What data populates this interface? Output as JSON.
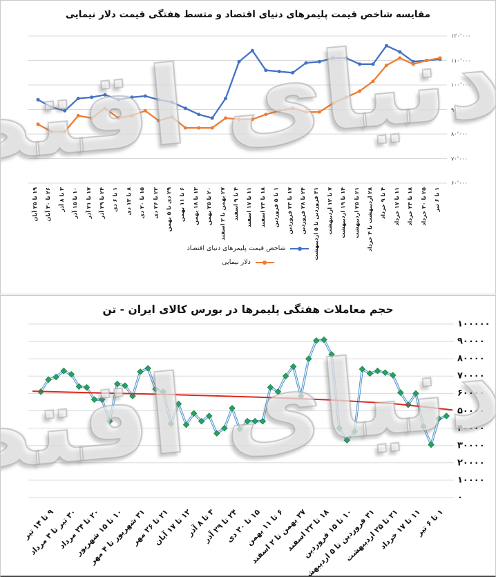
{
  "watermark": "دنیای اقتصاد",
  "chart_data": [
    {
      "type": "line",
      "title": "مقایسه شاخص قیمت پلیمرهای دنیای اقتصاد و متسط هفتگی قیمت دلار نیمایی",
      "categories": [
        "۱۹ تا ۲۵ آبان",
        "۲۶ تا ۳۰ آبان",
        "۳ تا ۸ آذر",
        "۱۰ تا ۱۵ آذر",
        "۱۷ تا ۲۱ آذر",
        "۲۴ تا ۲۹ آذر",
        "۱ تا ۶ دی",
        "۸ تا ۱۳ دی",
        "۱۵ تا ۲۰ دی",
        "۲۲ تا ۲۶ دی",
        "۲۹ دی تا ۵ بهمن",
        "۶ تا ۱۱ بهمن",
        "۱۳ تا ۱۸ بهمن",
        "۲۰ تا ۲۵ بهمن",
        "۲۷ بهمن تا ۲ اسفند",
        "۴ تا ۹ اسفند",
        "۱۱ تا ۱۷ اسفند",
        "۱۸ تا ۲۳ اسفند",
        "۱ تا ۵ فروردین",
        "۱۷ تا ۲۳ فروردین",
        "۲۴ تا ۲۸ فروردین",
        "۳۱ فروردین تا ۵ اردیبهشت",
        "۷ تا ۱۲ اردیبهشت",
        "۱۴ تا ۱۹ اردیبهشت",
        "۲۱ تا ۲۵ اردیبهشت",
        "۲۸ اردیبهشت تا ۴ خرداد",
        "۴ تا ۹ خرداد",
        "۱۱ تا ۱۷ خرداد",
        "۱۸ تا ۲۳ خرداد",
        "۲۵ تا ۳۰ خرداد",
        "۱ تا ۶ تیر"
      ],
      "series": [
        {
          "name": "شاخص قیمت پلیمرهای دنیای اقتصاد",
          "color": "#4472C4",
          "values": [
            94000,
            91000,
            89500,
            94500,
            95000,
            96000,
            94000,
            95000,
            95500,
            94000,
            93000,
            90500,
            88000,
            86500,
            94500,
            109500,
            114000,
            106000,
            105500,
            105000,
            109000,
            109500,
            111000,
            111000,
            108500,
            108500,
            116000,
            113500,
            109500,
            110000,
            110500
          ]
        },
        {
          "name": "دلار نیمایی",
          "color": "#ED7D31",
          "values": [
            84000,
            81000,
            81000,
            87500,
            86500,
            90500,
            86500,
            87500,
            89500,
            85500,
            87000,
            82500,
            82500,
            82500,
            86500,
            86000,
            86000,
            88000,
            89500,
            90500,
            89000,
            89000,
            92500,
            95000,
            97500,
            101500,
            108000,
            111000,
            108500,
            110000,
            111000
          ]
        }
      ],
      "ylim": [
        60000,
        120000
      ],
      "ytick_labels": [
        "۱۲۰٬۰۰۰",
        "۱۱۰٬۰۰۰",
        "۱۰۰٬۰۰۰",
        "۹۰٬۰۰۰",
        "۸۰٬۰۰۰",
        "۷۰٬۰۰۰",
        "۶۰٬۰۰۰"
      ],
      "grid": true,
      "legend_position": "bottom"
    },
    {
      "type": "line",
      "title": "حجم معاملات هفتگی پلیمرها در بورس کالای ایران - تن",
      "x_labels": [
        "۹ تا ۱۴ تیر",
        "۳۰ تیر تا ۳ مرداد",
        "۲۰ تا ۲۴ مرداد",
        "۱۰ تا ۱۵ شهریور",
        "۳۱ شهریور تا ۴ مهر",
        "۲۱ تا ۲۶ مهر",
        "۱۲ تا ۱۷ آبان",
        "۳ تا ۸ آذر",
        "۲۴ تا ۲۹ آذر",
        "۱۵ تا ۲۰ دی",
        "۶ تا ۱۱ بهمن",
        "۲۷ بهمن تا ۲ اسفند",
        "۱۸ تا ۲۳ اسفند",
        "۱۰ تا ۱۵ فروردین",
        "۳۱ فروردین تا ۵ اردیبهشت",
        "۲۱ تا ۲۵ اردیبهشت",
        "۱۱ تا ۱۷ خرداد",
        "۱ تا ۶ تیر"
      ],
      "label_every": 3,
      "series": [
        {
          "name": "حجم معاملات هفتگی",
          "color": "#4A90C9",
          "inner_color": "#EAF3FB",
          "marker": "diamond",
          "marker_color": "#27A25F",
          "marker_stroke": "#17814A",
          "values": [
            61000,
            68000,
            69500,
            73000,
            71000,
            64000,
            63500,
            56500,
            56500,
            44000,
            65500,
            64500,
            58500,
            72500,
            74500,
            62500,
            61000,
            42500,
            54000,
            42000,
            48500,
            44000,
            47000,
            37000,
            40000,
            51500,
            39500,
            44000,
            44000,
            44000,
            63500,
            61000,
            70000,
            75500,
            58500,
            80000,
            90500,
            91000,
            82500,
            40000,
            33000,
            38000,
            74000,
            71500,
            73000,
            72000,
            70500,
            60500,
            53500,
            60000,
            41000,
            30500,
            45500,
            47000
          ]
        }
      ],
      "trendline": {
        "color": "#E0261B",
        "samples": [
          61300,
          60400,
          59600,
          58700,
          57600,
          56200,
          54200,
          50500
        ]
      },
      "ylim": [
        0,
        100000
      ],
      "ytick_labels": [
        "۱۰۰۰۰۰",
        "۹۰۰۰۰",
        "۸۰۰۰۰",
        "۷۰۰۰۰",
        "۶۰۰۰۰",
        "۵۰۰۰۰",
        "۴۰۰۰۰",
        "۳۰۰۰۰",
        "۲۰۰۰۰",
        "۱۰۰۰۰",
        "۰"
      ],
      "grid": true
    }
  ]
}
